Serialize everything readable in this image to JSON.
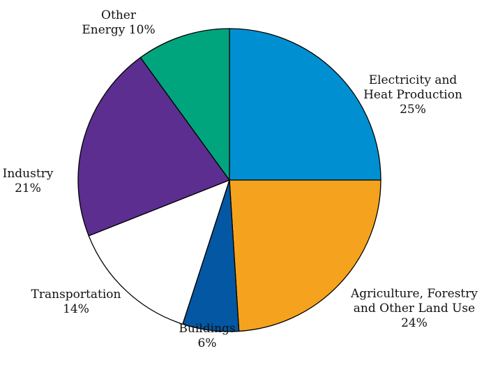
{
  "chart_data": {
    "type": "pie",
    "start_angle_deg": 0,
    "direction": "clockwise",
    "slices": [
      {
        "name": "Electricity and Heat Production",
        "value": 25,
        "color": "#0090d2",
        "label_lines": [
          "Electricity and",
          "Heat Production",
          "25%"
        ]
      },
      {
        "name": "Agriculture, Forestry and Other Land Use",
        "value": 24,
        "color": "#f5a31e",
        "label_lines": [
          "Agriculture, Forestry",
          "and Other Land Use",
          "24%"
        ]
      },
      {
        "name": "Buildings",
        "value": 6,
        "color": "#0457a3",
        "label_lines": [
          "Buildings",
          "6%"
        ]
      },
      {
        "name": "Transportation",
        "value": 14,
        "color": "#ffffff",
        "label_lines": [
          "Transportation",
          "14%"
        ]
      },
      {
        "name": "Industry",
        "value": 21,
        "color": "#5b2e90",
        "label_lines": [
          "Industry",
          "21%"
        ]
      },
      {
        "name": "Other Energy",
        "value": 10,
        "color": "#00a57e",
        "label_lines": [
          "Other",
          "Energy 10%"
        ]
      }
    ]
  }
}
